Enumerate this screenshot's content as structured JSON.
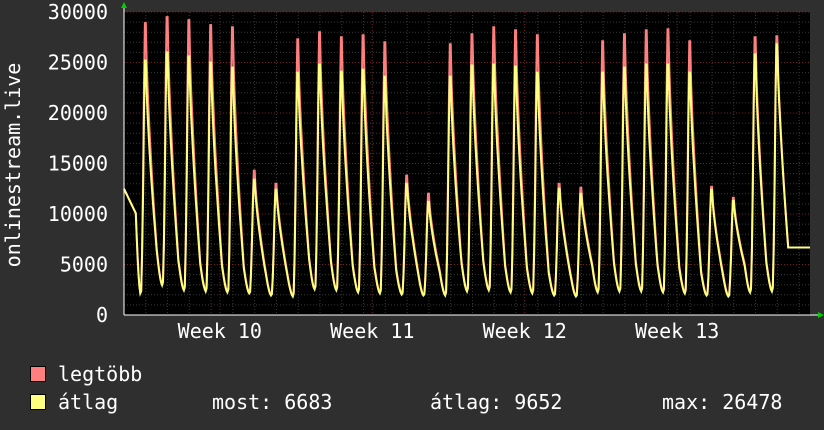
{
  "chart_data": {
    "type": "line",
    "ylabel": "onlinestream.live",
    "ylim": [
      0,
      30000
    ],
    "yticks": [
      0,
      5000,
      10000,
      15000,
      20000,
      25000,
      30000
    ],
    "ytick_labels": [
      "0",
      "5000",
      "10000",
      "15000",
      "20000",
      "25000",
      "30000"
    ],
    "xlim": [
      0,
      31.5
    ],
    "xticks": [
      {
        "x": 4.4,
        "label": "Week 10"
      },
      {
        "x": 11.4,
        "label": "Week 11"
      },
      {
        "x": 18.4,
        "label": "Week 12"
      },
      {
        "x": 25.4,
        "label": "Week 13"
      }
    ],
    "grid": true,
    "start_value": 12500,
    "end_value": 6683,
    "series": [
      {
        "name": "legtöbb",
        "color": "#ff7f7f",
        "daily_peaks": [
          28900,
          29500,
          29200,
          28700,
          28500,
          14300,
          13000,
          27300,
          28000,
          27500,
          27700,
          27000,
          13800,
          12000,
          26800,
          27800,
          28500,
          28200,
          27700,
          13000,
          12600,
          27100,
          27800,
          28200,
          28300,
          27100,
          12700,
          11600,
          27500,
          27600
        ],
        "daily_mins": [
          2000,
          3000,
          2500,
          2400,
          2300,
          2200,
          2000,
          1900,
          2600,
          2500,
          2300,
          2200,
          2100,
          2000,
          2000,
          2400,
          2500,
          2300,
          2200,
          2000,
          1900,
          2300,
          2400,
          2400,
          2300,
          2200,
          2000,
          1900,
          2300,
          2400
        ]
      },
      {
        "name": "átlag",
        "color": "#ffff7f",
        "daily_peaks": [
          25200,
          26000,
          25600,
          25000,
          24500,
          13400,
          12400,
          24000,
          24800,
          24100,
          24300,
          23600,
          13000,
          11200,
          23600,
          24700,
          24800,
          24600,
          24000,
          12500,
          12000,
          24000,
          24500,
          24800,
          24800,
          24000,
          12400,
          11300,
          25800,
          26800
        ],
        "daily_mins": [
          2000,
          2900,
          2400,
          2300,
          2200,
          2100,
          1900,
          1800,
          2500,
          2400,
          2200,
          2100,
          2000,
          1900,
          1900,
          2300,
          2400,
          2200,
          2100,
          1900,
          1800,
          2200,
          2300,
          2300,
          2200,
          2100,
          1900,
          1800,
          2200,
          2300
        ]
      }
    ]
  },
  "legend": {
    "max_label": "legtöbb",
    "avg_label": "átlag",
    "max_color": "#ff7f7f",
    "avg_color": "#ffff7f"
  },
  "stats": {
    "most": "most: 6683",
    "atlag": "átlag: 9652",
    "max": "max: 26478"
  }
}
